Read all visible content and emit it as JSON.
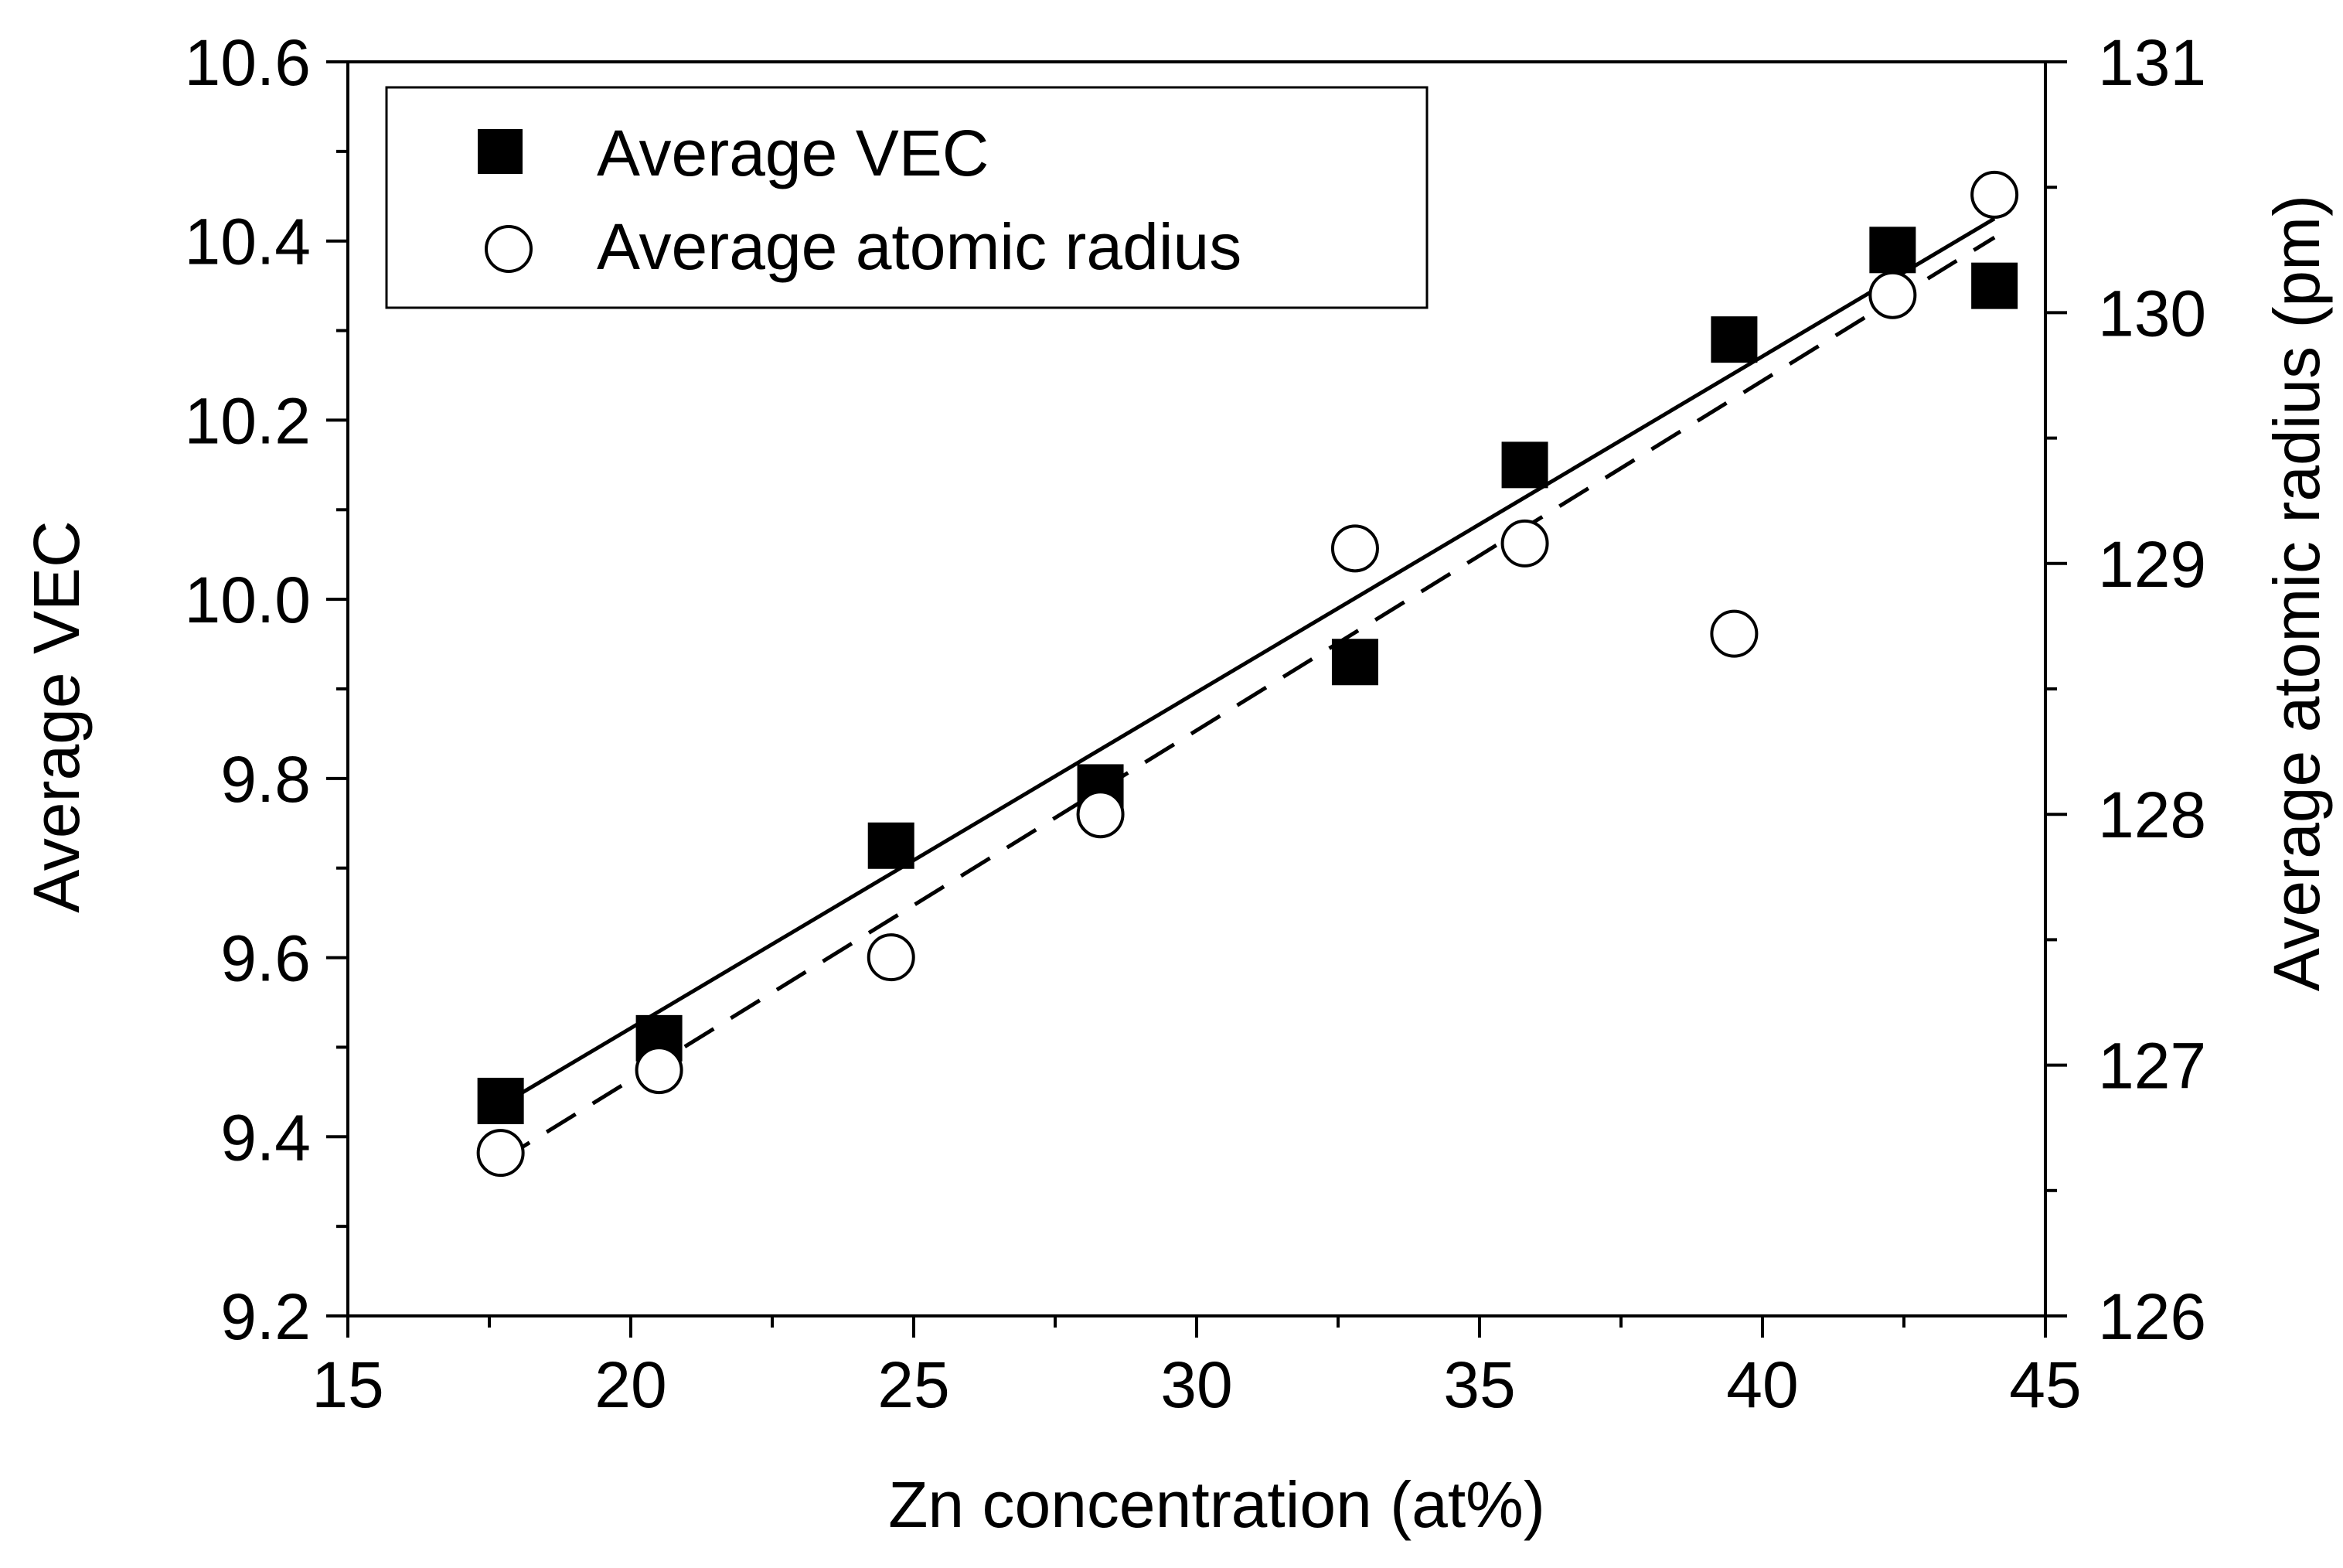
{
  "chart_data": {
    "type": "scatter",
    "title": "",
    "xlabel": "Zn concentration (at%)",
    "ylabel": "Average VEC",
    "y2label": "Average atomic radius (pm)",
    "xlim": [
      15,
      45
    ],
    "ylim": [
      9.2,
      10.6
    ],
    "y2lim": [
      126,
      131
    ],
    "x_ticks": [
      15,
      20,
      25,
      30,
      35,
      40,
      45
    ],
    "x_tick_labels": [
      "15",
      "20",
      "25",
      "30",
      "35",
      "40",
      "45"
    ],
    "y_ticks": [
      9.2,
      9.4,
      9.6,
      9.8,
      10.0,
      10.2,
      10.4,
      10.6
    ],
    "y_tick_labels": [
      "9.2",
      "9.4",
      "9.6",
      "9.8",
      "10.0",
      "10.2",
      "10.4",
      "10.6"
    ],
    "y2_ticks": [
      126,
      127,
      128,
      129,
      130,
      131
    ],
    "y2_tick_labels": [
      "126",
      "127",
      "128",
      "129",
      "130",
      "131"
    ],
    "x_minor_step": 2.5,
    "y_minor_step": 0.1,
    "y2_minor_step": 0.5,
    "grid": false,
    "legend_position": "top-left",
    "series": [
      {
        "name": "Average VEC",
        "axis": "left",
        "marker": "filled-square",
        "x": [
          17.7,
          20.5,
          24.6,
          28.3,
          32.8,
          35.8,
          39.5,
          42.3,
          44.1
        ],
        "y": [
          9.44,
          9.51,
          9.725,
          9.79,
          9.93,
          10.15,
          10.29,
          10.39,
          10.35
        ],
        "fit": {
          "style": "solid",
          "x": [
            17.7,
            44.1
          ],
          "y": [
            9.435,
            10.425
          ]
        }
      },
      {
        "name": "Average atomic radius",
        "axis": "right",
        "marker": "open-circle",
        "x": [
          17.7,
          20.5,
          24.6,
          28.3,
          32.8,
          35.8,
          39.5,
          42.3,
          44.1
        ],
        "y": [
          126.65,
          126.98,
          127.43,
          128.0,
          129.06,
          129.08,
          128.72,
          130.07,
          130.47
        ],
        "fit": {
          "style": "dashed",
          "x": [
            17.7,
            44.1
          ],
          "y": [
            126.62,
            130.3
          ]
        }
      }
    ]
  }
}
